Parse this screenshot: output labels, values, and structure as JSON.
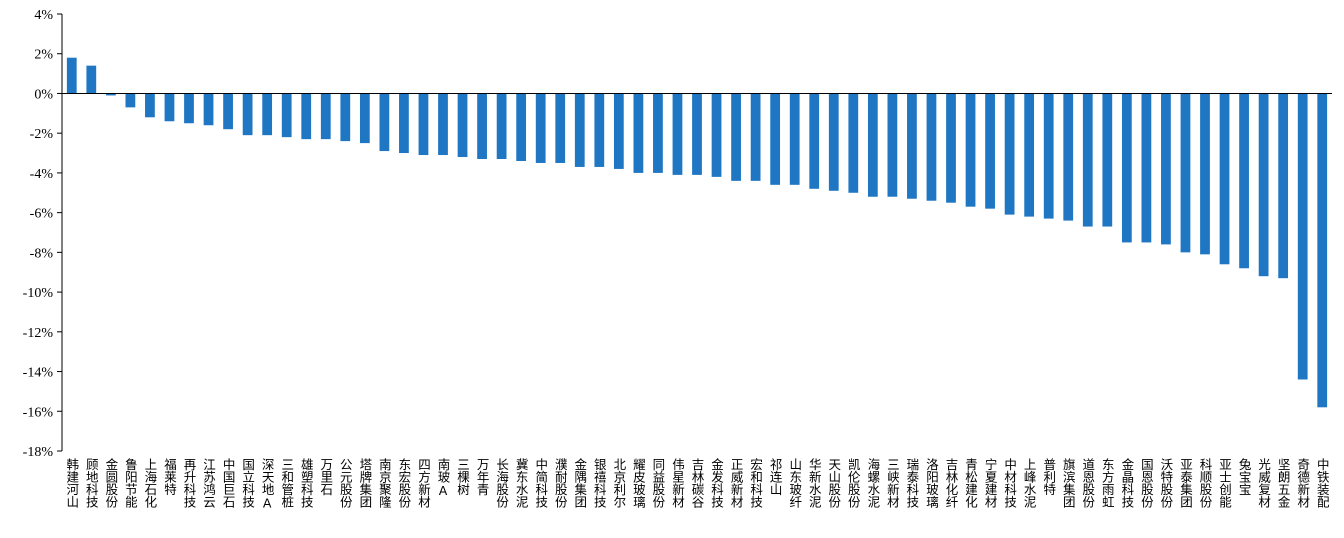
{
  "chart_data": {
    "type": "bar",
    "categories": [
      "韩建河山",
      "顾地科技",
      "金圆股份",
      "鲁阳节能",
      "上海石化",
      "福莱特",
      "再升科技",
      "江苏鸿云",
      "中国巨石",
      "国立科技",
      "深天地A",
      "三和管桩",
      "雄塑科技",
      "万里石",
      "公元股份",
      "塔牌集团",
      "南京聚隆",
      "东宏股份",
      "四方新材",
      "南玻A",
      "三棵树",
      "万年青",
      "长海股份",
      "冀东水泥",
      "中简科技",
      "濮耐股份",
      "金隅集团",
      "银禧科技",
      "北京利尔",
      "耀皮玻璃",
      "同益股份",
      "伟星新材",
      "吉林碳谷",
      "金发科技",
      "正威新材",
      "宏和科技",
      "祁连山",
      "山东玻纤",
      "华新水泥",
      "天山股份",
      "凯伦股份",
      "海螺水泥",
      "三峡新材",
      "瑞泰科技",
      "洛阳玻璃",
      "吉林化纤",
      "青松建化",
      "宁夏建材",
      "中材科技",
      "上峰水泥",
      "普利特",
      "旗滨集团",
      "道恩股份",
      "东方雨虹",
      "金晶科技",
      "国恩股份",
      "沃特股份",
      "亚泰集团",
      "科顺股份",
      "亚士创能",
      "兔宝宝",
      "光威复材",
      "坚朗五金",
      "奇德新材",
      "中铁装配"
    ],
    "values": [
      1.8,
      1.4,
      -0.1,
      -0.7,
      -1.2,
      -1.4,
      -1.5,
      -1.6,
      -1.8,
      -2.1,
      -2.1,
      -2.2,
      -2.3,
      -2.3,
      -2.4,
      -2.5,
      -2.9,
      -3.0,
      -3.1,
      -3.1,
      -3.2,
      -3.3,
      -3.3,
      -3.4,
      -3.5,
      -3.5,
      -3.7,
      -3.7,
      -3.8,
      -4.0,
      -4.0,
      -4.1,
      -4.1,
      -4.2,
      -4.4,
      -4.4,
      -4.6,
      -4.6,
      -4.8,
      -4.9,
      -5.0,
      -5.2,
      -5.2,
      -5.3,
      -5.4,
      -5.5,
      -5.7,
      -5.8,
      -6.1,
      -6.2,
      -6.3,
      -6.4,
      -6.7,
      -6.7,
      -7.5,
      -7.5,
      -7.6,
      -8.0,
      -8.1,
      -8.6,
      -8.8,
      -9.2,
      -9.3,
      -14.4,
      -15.8
    ],
    "color": "#1f77c4",
    "ylim": [
      -18,
      4
    ],
    "yticks": [
      {
        "value": 4,
        "label": "4%"
      },
      {
        "value": 2,
        "label": "2%"
      },
      {
        "value": 0,
        "label": "0%"
      },
      {
        "value": -2,
        "label": "-2%"
      },
      {
        "value": -4,
        "label": "-4%"
      },
      {
        "value": -6,
        "label": "-6%"
      },
      {
        "value": -8,
        "label": "-8%"
      },
      {
        "value": -10,
        "label": "-10%"
      },
      {
        "value": -12,
        "label": "-12%"
      },
      {
        "value": -14,
        "label": "-14%"
      },
      {
        "value": -16,
        "label": "-16%"
      },
      {
        "value": -18,
        "label": "-18%"
      }
    ],
    "grid": false
  }
}
